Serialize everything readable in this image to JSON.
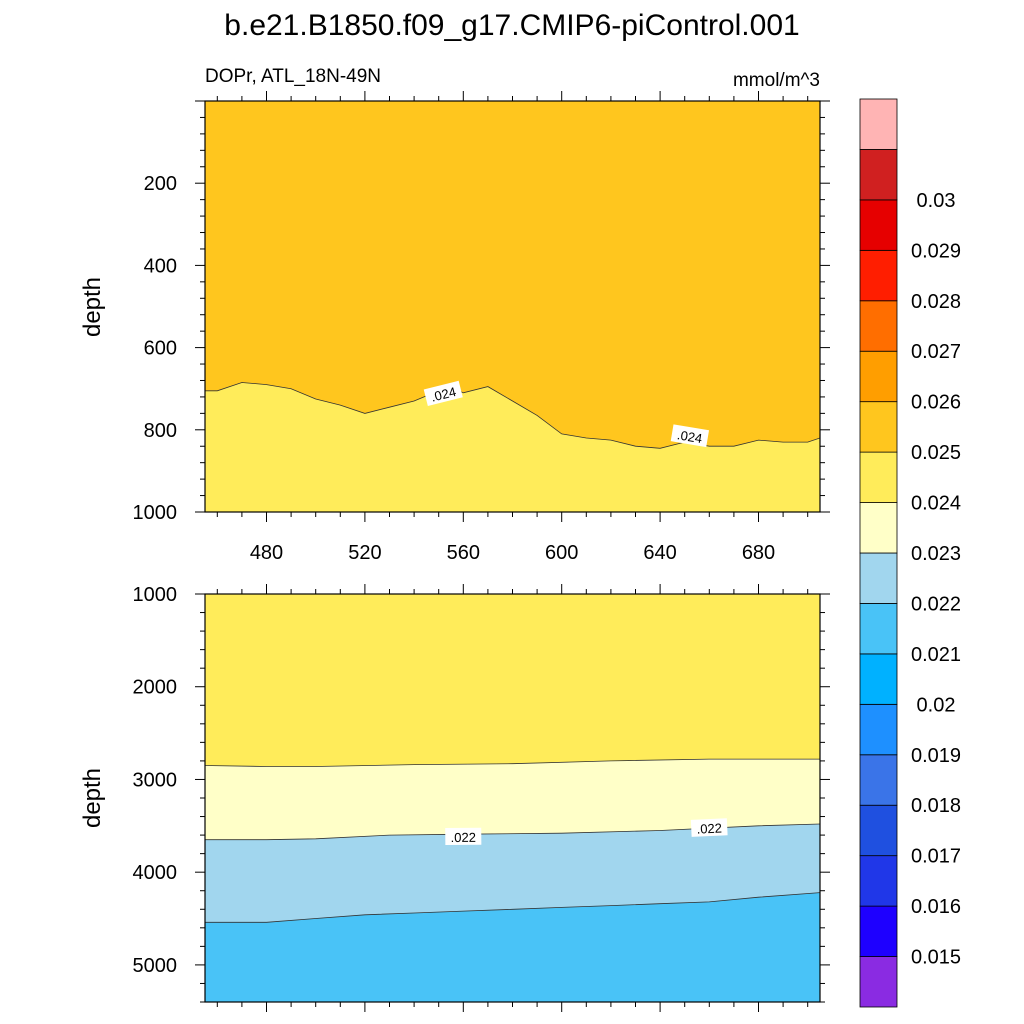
{
  "title": "b.e21.B1850.f09_g17.CMIP6-piControl.001",
  "chart_data": [
    {
      "type": "contour",
      "panel": "upper",
      "left_label": "DOPr, ATL_18N-49N",
      "right_label": "mmol/m^3",
      "ylabel": "depth",
      "xlabel": "",
      "xlim": [
        455,
        705
      ],
      "ylim_top_to_bottom": [
        0,
        1000
      ],
      "x_ticks": [
        480,
        520,
        560,
        600,
        640,
        680
      ],
      "x_tick_labels": [
        "480",
        "520",
        "560",
        "600",
        "640",
        "680"
      ],
      "y_ticks": [
        200,
        400,
        600,
        800,
        1000
      ],
      "y_tick_labels": [
        "200",
        "400",
        "600",
        "800",
        "1000"
      ],
      "regions": [
        {
          "range": "0.024-0.025",
          "color": "#FFC61E",
          "below_line": null
        },
        {
          "range": "0.023-0.024",
          "color": "#FFEC5A",
          "below_line": "c024"
        }
      ],
      "contour_lines": [
        {
          "id": "c024",
          "value": 0.024,
          "label": ".024",
          "label_positions": [
            [
              552,
              715
            ],
            [
              652,
              818
            ]
          ],
          "x": [
            455,
            460,
            470,
            480,
            490,
            500,
            510,
            520,
            530,
            540,
            550,
            555,
            560,
            570,
            580,
            590,
            600,
            610,
            620,
            630,
            640,
            650,
            660,
            670,
            680,
            690,
            700,
            705
          ],
          "y": [
            705,
            705,
            685,
            690,
            700,
            725,
            740,
            760,
            745,
            730,
            705,
            695,
            710,
            695,
            730,
            765,
            810,
            820,
            825,
            840,
            845,
            830,
            840,
            840,
            825,
            830,
            830,
            820
          ]
        }
      ]
    },
    {
      "type": "contour",
      "panel": "lower",
      "ylabel": "depth",
      "xlabel": "",
      "xlim": [
        455,
        705
      ],
      "ylim_top_to_bottom": [
        1000,
        5400
      ],
      "x_ticks": [
        480,
        520,
        560,
        600,
        640,
        680
      ],
      "y_ticks": [
        1000,
        2000,
        3000,
        4000,
        5000
      ],
      "y_tick_labels": [
        "1000",
        "2000",
        "3000",
        "4000",
        "5000"
      ],
      "regions": [
        {
          "range": "0.023-0.024",
          "color": "#FFEC5A",
          "below_line": null
        },
        {
          "range": "0.022-0.023",
          "color": "#FFFFC8",
          "below_line": "c023"
        },
        {
          "range": "0.021-0.022",
          "color": "#A1D6EE",
          "below_line": "c022"
        },
        {
          "range": "0.020-0.021",
          "color": "#49C3F7",
          "below_line": "c021"
        }
      ],
      "contour_lines": [
        {
          "id": "c023",
          "value": 0.023,
          "label": "",
          "label_positions": [],
          "x": [
            455,
            480,
            500,
            540,
            580,
            620,
            660,
            705
          ],
          "y": [
            2850,
            2860,
            2860,
            2840,
            2830,
            2800,
            2780,
            2780
          ]
        },
        {
          "id": "c022",
          "value": 0.022,
          "label": ".022",
          "label_positions": [
            [
              560,
              3630
            ],
            [
              660,
              3535
            ]
          ],
          "x": [
            455,
            480,
            500,
            530,
            560,
            600,
            640,
            680,
            705
          ],
          "y": [
            3650,
            3650,
            3640,
            3600,
            3590,
            3580,
            3550,
            3500,
            3480
          ]
        },
        {
          "id": "c021",
          "value": 0.021,
          "label": "",
          "label_positions": [],
          "x": [
            455,
            480,
            500,
            520,
            540,
            560,
            580,
            600,
            620,
            640,
            660,
            680,
            705
          ],
          "y": [
            4540,
            4540,
            4500,
            4460,
            4440,
            4420,
            4400,
            4380,
            4360,
            4340,
            4320,
            4270,
            4220
          ]
        }
      ]
    },
    {
      "type": "colorbar",
      "colors": [
        "#8A2BE2",
        "#1E00FF",
        "#2037E8",
        "#1F50E0",
        "#3A74E8",
        "#1E90FF",
        "#00B1FF",
        "#49C3F7",
        "#A1D6EE",
        "#FFFFC8",
        "#FFEC5A",
        "#FFC61E",
        "#FF9E00",
        "#FF6E00",
        "#FF1E00",
        "#E60000",
        "#D02020",
        "#FFB4B4"
      ],
      "labels": [
        "0.015",
        "0.016",
        "0.017",
        "0.018",
        "0.019",
        "0.02",
        "0.021",
        "0.022",
        "0.023",
        "0.024",
        "0.025",
        "0.026",
        "0.027",
        "0.028",
        "0.029",
        "0.03"
      ]
    }
  ]
}
